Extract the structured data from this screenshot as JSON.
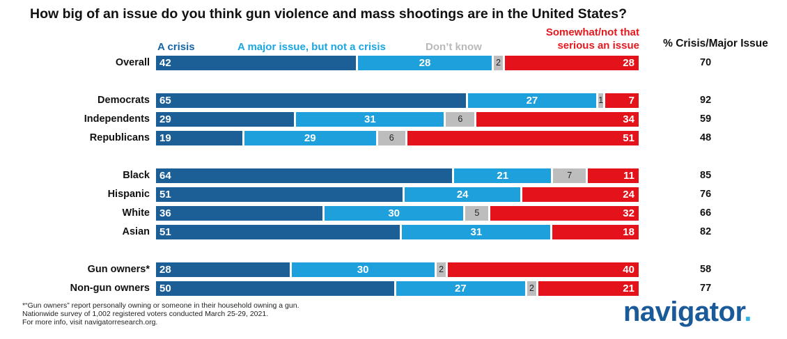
{
  "title": "How big of an issue do you think gun violence and mass shootings are in the United States?",
  "legend": {
    "crisis": "A crisis",
    "major": "A major issue, but not a crisis",
    "dont_know": "Don’t know",
    "somewhat_line1": "Somewhat/not that",
    "somewhat_line2": "serious an issue"
  },
  "summary_header": "% Crisis/Major Issue",
  "colors": {
    "crisis": "#1c5f96",
    "major": "#1ea0dc",
    "dont_know": "#bdbdbd",
    "somewhat": "#e4121a",
    "logo": "#1a5a99"
  },
  "chart_data": {
    "type": "bar",
    "stacked": true,
    "orientation": "horizontal",
    "title": "How big of an issue do you think gun violence and mass shootings are in the United States?",
    "categories": [
      "Overall",
      "Democrats",
      "Independents",
      "Republicans",
      "Black",
      "Hispanic",
      "White",
      "Asian",
      "Gun owners*",
      "Non-gun owners"
    ],
    "series": [
      {
        "name": "A crisis",
        "values": [
          42,
          65,
          29,
          19,
          64,
          51,
          36,
          51,
          28,
          50
        ]
      },
      {
        "name": "A major issue, but not a crisis",
        "values": [
          28,
          27,
          31,
          29,
          21,
          24,
          30,
          31,
          30,
          27
        ]
      },
      {
        "name": "Don’t know",
        "values": [
          2,
          1,
          6,
          6,
          7,
          null,
          5,
          null,
          2,
          2
        ]
      },
      {
        "name": "Somewhat/not that serious an issue",
        "values": [
          28,
          7,
          34,
          51,
          11,
          24,
          32,
          18,
          40,
          21
        ]
      }
    ],
    "summary_column": {
      "name": "% Crisis/Major Issue",
      "values": [
        70,
        92,
        59,
        48,
        85,
        76,
        66,
        82,
        58,
        77
      ]
    }
  },
  "footnotes": [
    "*“Gun owners” report personally owning or someone in their household owning a gun.",
    "Nationwide survey of 1,002 registered voters conducted March 25-29, 2021.",
    "For more info, visit navigatorresearch.org."
  ],
  "logo": {
    "text": "navigator",
    "dot": "."
  }
}
